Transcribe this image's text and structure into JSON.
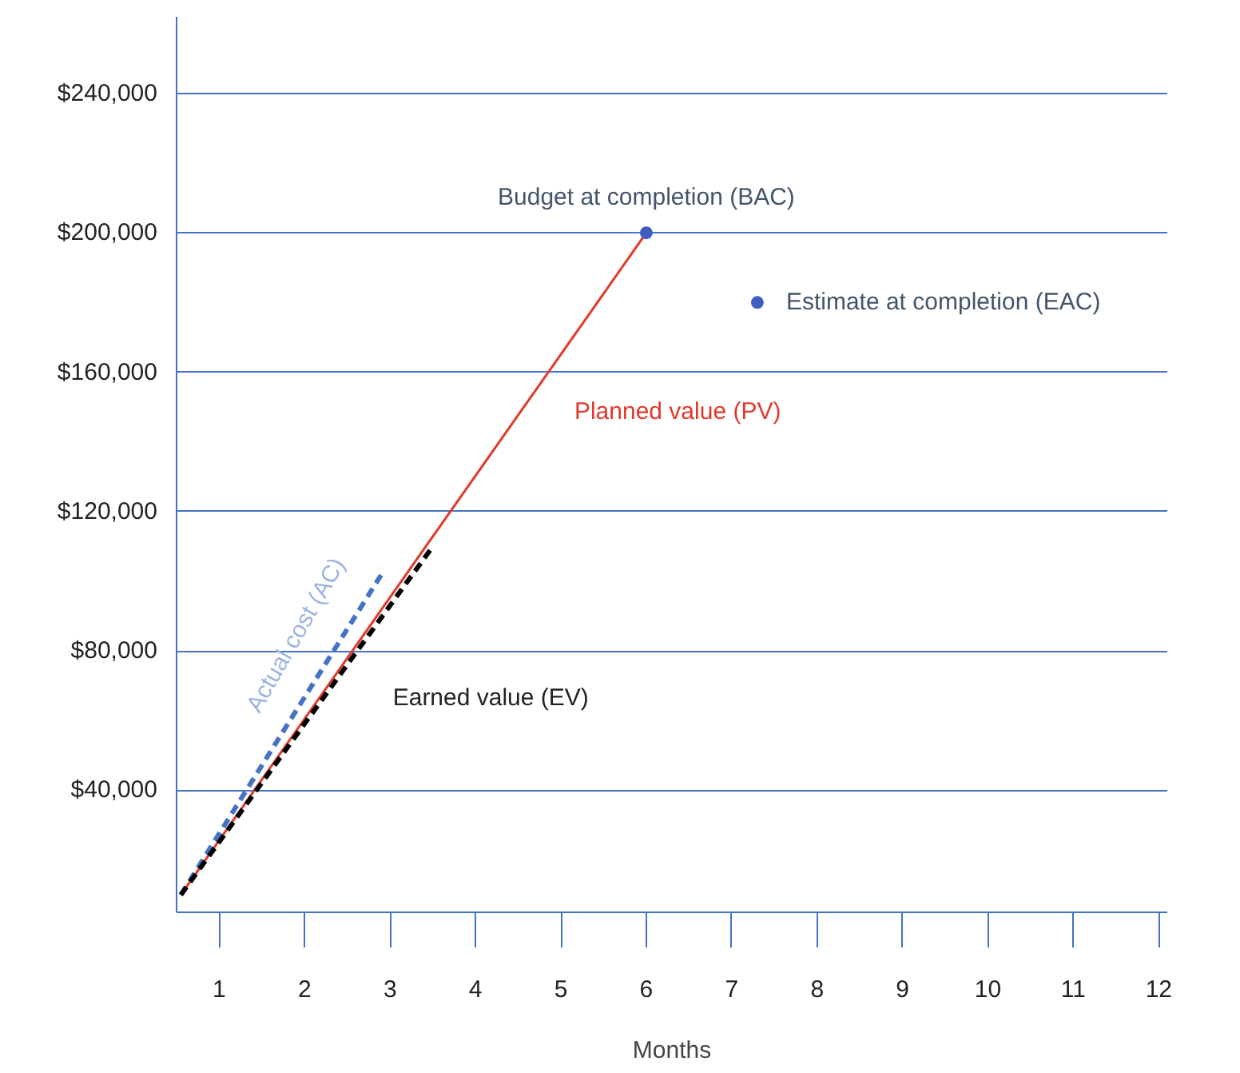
{
  "chart_data": {
    "type": "line",
    "xlabel": "Months",
    "xlim": [
      0.5,
      12.1
    ],
    "ylim": [
      5000,
      262000
    ],
    "xticks": [
      1,
      2,
      3,
      4,
      5,
      6,
      7,
      8,
      9,
      10,
      11,
      12
    ],
    "yticks": [
      {
        "value": 40000,
        "label": "$40,000"
      },
      {
        "value": 80000,
        "label": "$80,000"
      },
      {
        "value": 120000,
        "label": "$120,000"
      },
      {
        "value": 160000,
        "label": "$160,000"
      },
      {
        "value": 200000,
        "label": "$200,000"
      },
      {
        "value": 240000,
        "label": "$240,000"
      }
    ],
    "grid": "y",
    "series": [
      {
        "name": "Planned value (PV)",
        "color": "#e0392b",
        "line_style": "solid",
        "x": [
          0.55,
          6.0
        ],
        "values": [
          10000,
          200000
        ]
      },
      {
        "name": "Actual cost (AC)",
        "color": "#4472c4",
        "line_style": "dashed",
        "x": [
          0.55,
          2.9
        ],
        "values": [
          10000,
          102000
        ]
      },
      {
        "name": "Earned value (EV)",
        "color": "#000000",
        "line_style": "dashed",
        "x": [
          0.55,
          3.5
        ],
        "values": [
          10000,
          110000
        ]
      },
      {
        "name": "Budget at completion (BAC)",
        "type": "scatter",
        "color": "#3f5fbf",
        "marker": "circle",
        "x": [
          6.0
        ],
        "values": [
          200000
        ]
      },
      {
        "name": "Estimate at completion (EAC)",
        "type": "scatter",
        "color": "#3f5fbf",
        "marker": "circle",
        "x": [
          7.3
        ],
        "values": [
          180000
        ]
      }
    ]
  }
}
